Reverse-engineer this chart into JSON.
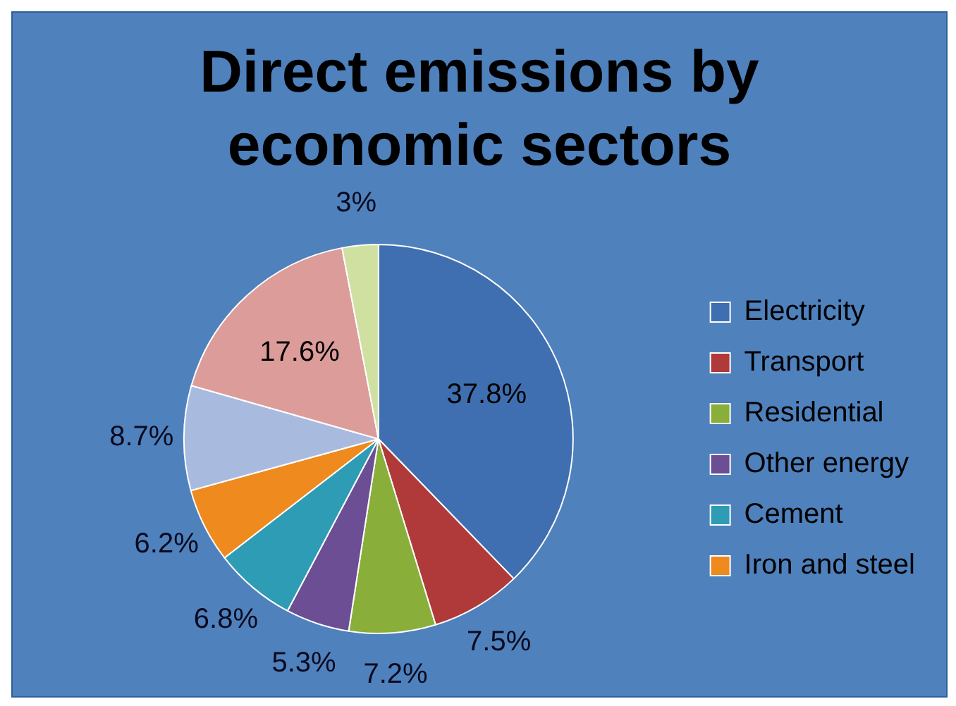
{
  "chart_data": {
    "type": "pie",
    "title": "Direct emissions by economic sectors",
    "categories": [
      "Electricity",
      "Transport",
      "Residential",
      "Other energy",
      "Cement",
      "Iron and steel",
      null,
      null,
      null
    ],
    "values": [
      37.8,
      7.5,
      7.2,
      5.3,
      6.8,
      6.2,
      8.7,
      17.6,
      3
    ],
    "value_labels": [
      "37.8%",
      "7.5%",
      "7.2%",
      "5.3%",
      "6.8%",
      "6.2%",
      "8.7%",
      "17.6%",
      "3%"
    ],
    "colors": [
      "#3f6fb0",
      "#b03a3a",
      "#8aae3a",
      "#6b4e94",
      "#2e9cb4",
      "#ef8a1e",
      "#a8bbdf",
      "#dc9c9a",
      "#cfe0a0"
    ],
    "legend": "right"
  }
}
